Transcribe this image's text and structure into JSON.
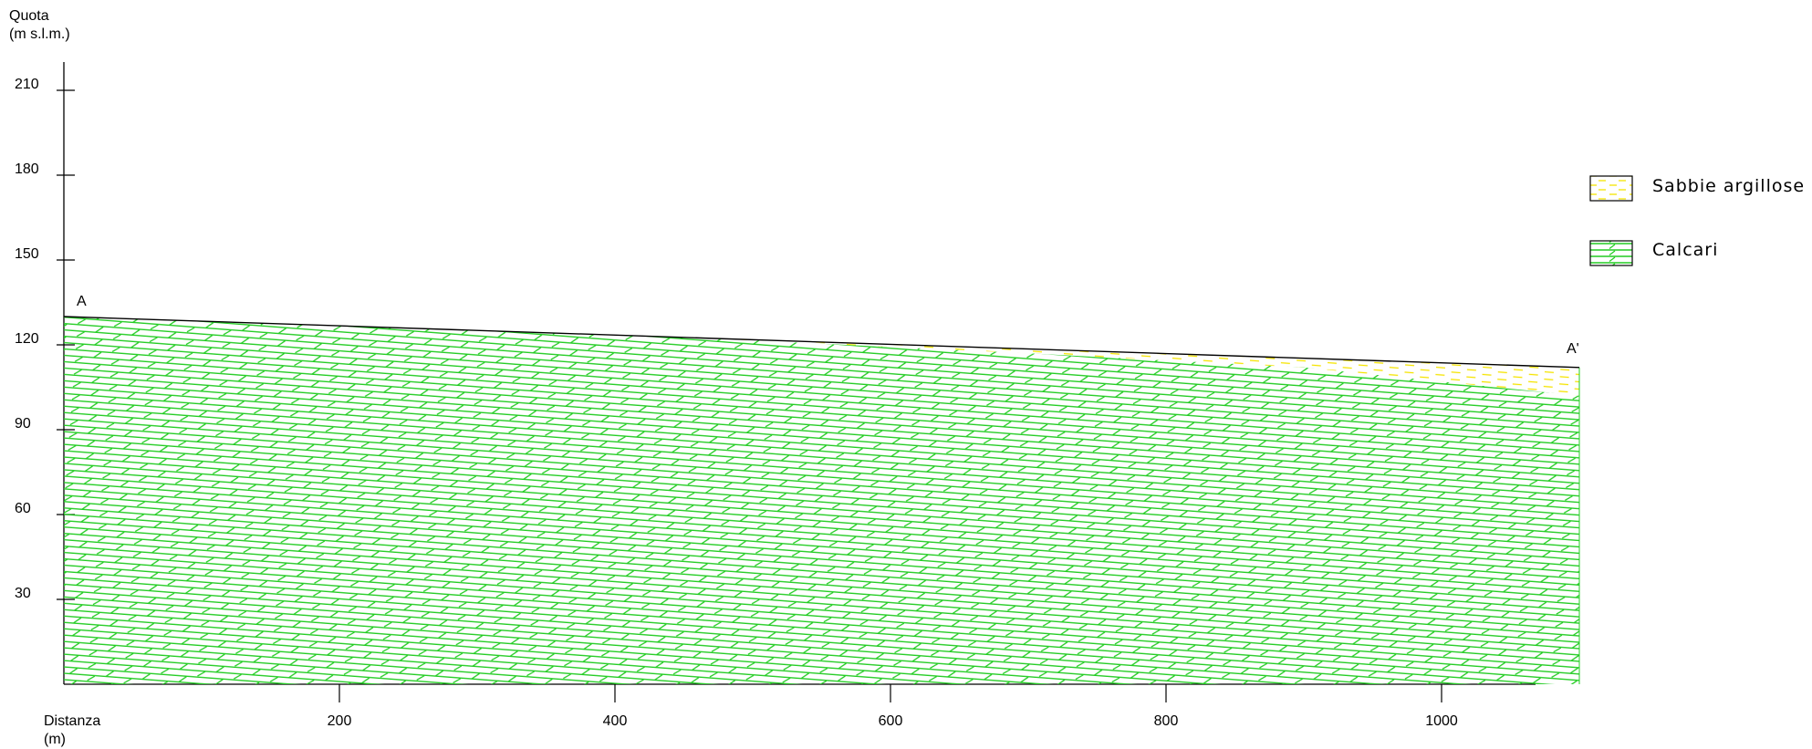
{
  "chart_data": {
    "type": "geologic-cross-section",
    "y_axis": {
      "title_line1": "Quota",
      "title_line2": "(m s.l.m.)",
      "ticks": [
        30,
        60,
        90,
        120,
        150,
        180,
        210
      ],
      "range": [
        0,
        220
      ]
    },
    "x_axis": {
      "title_line1": "Distanza",
      "title_line2": "(m)",
      "ticks": [
        200,
        400,
        600,
        800,
        1000
      ],
      "range": [
        0,
        1100
      ]
    },
    "profile_start_label": "A",
    "profile_end_label": "A'",
    "topography": [
      {
        "x": 0,
        "y": 130
      },
      {
        "x": 1100,
        "y": 112
      }
    ],
    "sand_base": [
      {
        "x": 480,
        "y": 122
      },
      {
        "x": 700,
        "y": 117
      },
      {
        "x": 900,
        "y": 112
      },
      {
        "x": 1100,
        "y": 102
      }
    ],
    "legend": [
      {
        "label": "Sabbie argillose",
        "pattern": "dashed",
        "color": "#f5e400"
      },
      {
        "label": "Calcari",
        "pattern": "bedded-limestone",
        "color": "#00cc00"
      }
    ]
  }
}
